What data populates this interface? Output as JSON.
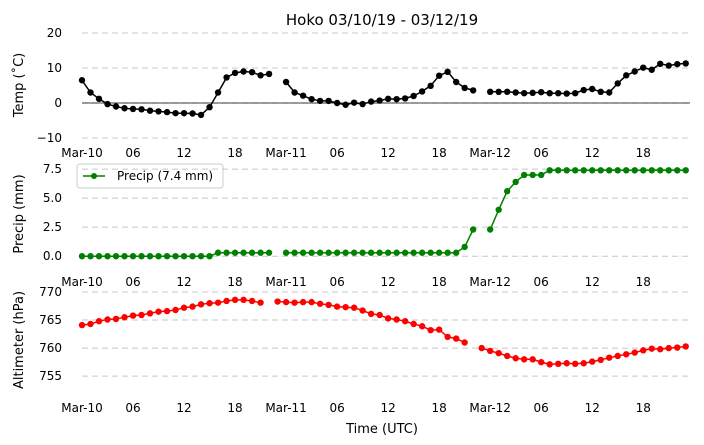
{
  "figure": {
    "title": "Hoko 03/10/19 - 03/12/19",
    "xlabel": "Time (UTC)"
  },
  "chart_data": [
    {
      "type": "line",
      "title": "Hoko 03/10/19 - 03/12/19",
      "xlabel": "",
      "ylabel": "Temp (˚C)",
      "ylim": [
        -10,
        20
      ],
      "yticks": [
        "−10",
        "0",
        "10",
        "20"
      ],
      "xlim_hours": [
        0,
        71.5
      ],
      "xticks": [
        "Mar-10",
        "06",
        "12",
        "18",
        "Mar-11",
        "06",
        "12",
        "18",
        "Mar-12",
        "06",
        "12",
        "18"
      ],
      "grid": "horizontal dashed",
      "zero_line": true,
      "color": "#000000",
      "hours": [
        0,
        1,
        2,
        3,
        4,
        5,
        6,
        7,
        8,
        9,
        10,
        11,
        12,
        13,
        14,
        15,
        16,
        17,
        18,
        19,
        20,
        21,
        22,
        23,
        24,
        25,
        26,
        27,
        28,
        29,
        30,
        31,
        32,
        33,
        34,
        35,
        36,
        37,
        38,
        39,
        40,
        41,
        42,
        43,
        44,
        45,
        46,
        47,
        48,
        49,
        50,
        51,
        52,
        53,
        54,
        55,
        56,
        57,
        58,
        59,
        60,
        61,
        62,
        63,
        64,
        65,
        66,
        67,
        68,
        69,
        70,
        71
      ],
      "values": [
        6.5,
        3.0,
        1.2,
        -0.3,
        -1.0,
        -1.5,
        -1.7,
        -1.8,
        -2.2,
        -2.4,
        -2.6,
        -2.9,
        -2.9,
        -3.0,
        -3.4,
        -1.2,
        3.0,
        7.3,
        8.6,
        9.0,
        8.8,
        7.9,
        8.3,
        null,
        6.0,
        3.0,
        2.1,
        1.1,
        0.6,
        0.6,
        0.0,
        -0.5,
        0.1,
        -0.3,
        0.4,
        0.7,
        1.2,
        1.1,
        1.3,
        2.0,
        3.3,
        4.9,
        7.8,
        8.9,
        6.0,
        4.3,
        3.6,
        null,
        3.2,
        3.2,
        3.2,
        3.0,
        2.8,
        2.9,
        3.1,
        2.8,
        2.8,
        2.7,
        2.8,
        3.7,
        4.0,
        3.2,
        3.0,
        5.6,
        7.9,
        9.0,
        10.1,
        9.5,
        11.2,
        10.7,
        11.1,
        11.3
      ]
    },
    {
      "type": "line",
      "ylabel": "Precip (mm)",
      "ylim": [
        -0.5,
        7.6
      ],
      "yticks": [
        "0.0",
        "2.5",
        "5.0",
        "7.5"
      ],
      "xlim_hours": [
        0,
        71.5
      ],
      "xticks": [
        "Mar-10",
        "06",
        "12",
        "18",
        "Mar-11",
        "06",
        "12",
        "18",
        "Mar-12",
        "06",
        "12",
        "18"
      ],
      "grid": "horizontal dashed",
      "legend": "upper-left",
      "series_name": "Precip (7.4 mm)",
      "color": "#008000",
      "hours": [
        0,
        1,
        2,
        3,
        4,
        5,
        6,
        7,
        8,
        9,
        10,
        11,
        12,
        13,
        14,
        15,
        16,
        17,
        18,
        19,
        20,
        21,
        22,
        23,
        24,
        25,
        26,
        27,
        28,
        29,
        30,
        31,
        32,
        33,
        34,
        35,
        36,
        37,
        38,
        39,
        40,
        41,
        42,
        43,
        44,
        45,
        46,
        47,
        48,
        49,
        50,
        51,
        52,
        53,
        54,
        55,
        56,
        57,
        58,
        59,
        60,
        61,
        62,
        63,
        64,
        65,
        66,
        67,
        68,
        69,
        70,
        71
      ],
      "values": [
        0.0,
        0.0,
        0.0,
        0.0,
        0.0,
        0.0,
        0.0,
        0.0,
        0.0,
        0.0,
        0.0,
        0.0,
        0.0,
        0.0,
        0.0,
        0.0,
        0.3,
        0.3,
        0.3,
        0.3,
        0.3,
        0.3,
        0.3,
        null,
        0.3,
        0.3,
        0.3,
        0.3,
        0.3,
        0.3,
        0.3,
        0.3,
        0.3,
        0.3,
        0.3,
        0.3,
        0.3,
        0.3,
        0.3,
        0.3,
        0.3,
        0.3,
        0.3,
        0.3,
        0.3,
        0.8,
        2.3,
        null,
        2.3,
        4.0,
        5.6,
        6.4,
        7.0,
        7.0,
        7.0,
        7.4,
        7.4,
        7.4,
        7.4,
        7.4,
        7.4,
        7.4,
        7.4,
        7.4,
        7.4,
        7.4,
        7.4,
        7.4,
        7.4,
        7.4,
        7.4,
        7.4
      ]
    },
    {
      "type": "line",
      "ylabel": "Altimeter (hPa)",
      "ylim": [
        752,
        770
      ],
      "yticks": [
        "755",
        "760",
        "765",
        "770"
      ],
      "xlim_hours": [
        0,
        71.5
      ],
      "xticks": [
        "Mar-10",
        "06",
        "12",
        "18",
        "Mar-11",
        "06",
        "12",
        "18",
        "Mar-12",
        "06",
        "12",
        "18"
      ],
      "xlabel": "Time (UTC)",
      "grid": "horizontal dashed",
      "color": "#ff0000",
      "hours": [
        0,
        1,
        2,
        3,
        4,
        5,
        6,
        7,
        8,
        9,
        10,
        11,
        12,
        13,
        14,
        15,
        16,
        17,
        18,
        19,
        20,
        21,
        22,
        23,
        24,
        25,
        26,
        27,
        28,
        29,
        30,
        31,
        32,
        33,
        34,
        35,
        36,
        37,
        38,
        39,
        40,
        41,
        42,
        43,
        44,
        45,
        46,
        47,
        48,
        49,
        50,
        51,
        52,
        53,
        54,
        55,
        56,
        57,
        58,
        59,
        60,
        61,
        62,
        63,
        64,
        65,
        66,
        67,
        68,
        69,
        70,
        71
      ],
      "values": [
        764.1,
        764.3,
        764.8,
        765.1,
        765.2,
        765.5,
        765.8,
        765.9,
        766.2,
        766.5,
        766.6,
        766.8,
        767.2,
        767.4,
        767.8,
        768.0,
        768.1,
        768.4,
        768.6,
        768.6,
        768.4,
        768.1,
        null,
        768.3,
        768.2,
        768.1,
        768.2,
        768.2,
        767.9,
        767.7,
        767.4,
        767.3,
        767.2,
        766.7,
        766.1,
        765.9,
        765.3,
        765.1,
        764.8,
        764.3,
        763.9,
        763.2,
        763.3,
        762.0,
        761.7,
        761.0,
        null,
        760.0,
        759.5,
        759.1,
        758.6,
        758.2,
        758.0,
        758.0,
        757.5,
        757.1,
        757.2,
        757.3,
        757.2,
        757.3,
        757.6,
        757.9,
        758.3,
        758.6,
        758.9,
        759.2,
        759.6,
        759.9,
        759.8,
        760.0,
        760.1,
        760.3
      ]
    }
  ]
}
